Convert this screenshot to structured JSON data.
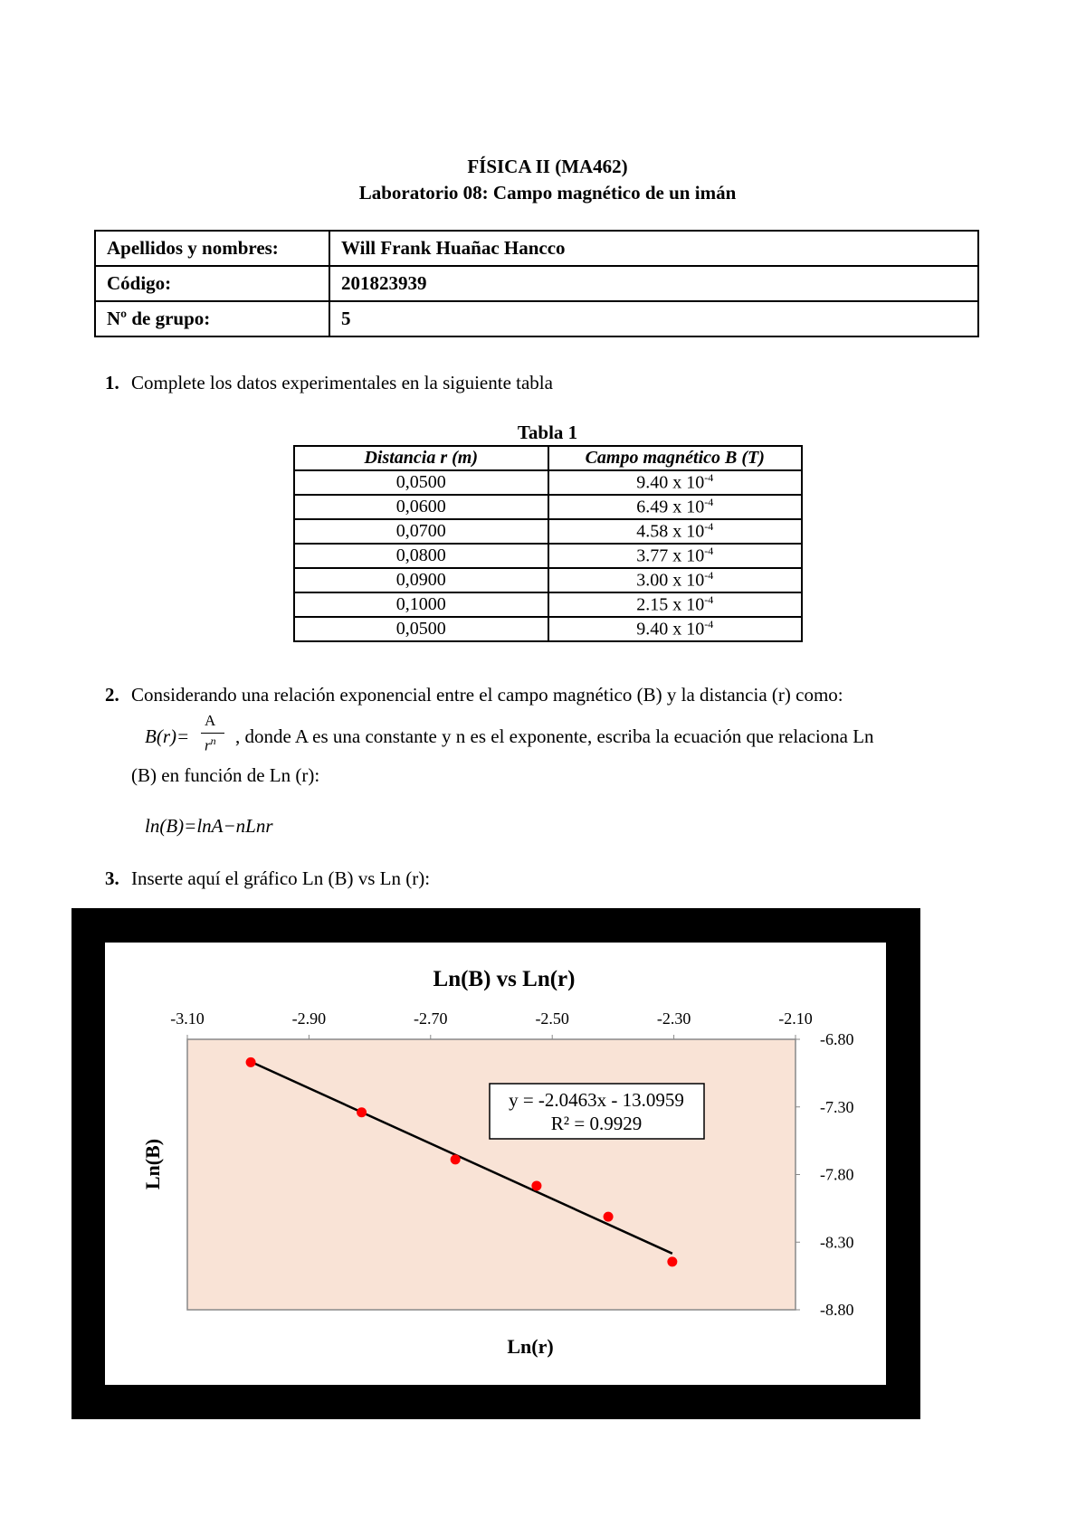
{
  "header": {
    "title": "FÍSICA II (MA462)",
    "subtitle": "Laboratorio 08: Campo magnético de un imán"
  },
  "info_table": {
    "rows": [
      [
        "Apellidos y nombres:",
        "Will Frank Huañac Hancco"
      ],
      [
        "Código:",
        "201823939"
      ],
      [
        "Nº de grupo:",
        "5"
      ]
    ]
  },
  "questions": [
    {
      "number": "1.",
      "text": "Complete los datos experimentales en la siguiente tabla"
    },
    {
      "number": "2.",
      "text": "Considerando una relación exponencial entre el campo magnético (B) y la distancia (r) como:",
      "formula": {
        "lhs": "B(r)=",
        "numerator": "A",
        "denominator": "r",
        "power": "n"
      },
      "continuation": ", donde A es una constante y n es el exponente, escriba la ecuación que relaciona Ln",
      "continuation2": "(B) en función de Ln (r):",
      "equation": "ln(B)=lnA−nLnr"
    },
    {
      "number": "3.",
      "text": "Inserte aquí el gráfico Ln (B) vs Ln (r):"
    }
  ],
  "table": {
    "caption": "Tabla 1",
    "headers": [
      "Distancia r (m)",
      "Campo magnético B (T)"
    ],
    "rows": [
      [
        "0,0500",
        "9.40 x 10",
        "-4"
      ],
      [
        "0,0600",
        "6.49 x 10",
        "-4"
      ],
      [
        "0,0700",
        "4.58 x 10",
        "-4"
      ],
      [
        "0,0800",
        "3.77 x 10",
        "-4"
      ],
      [
        "0,0900",
        "3.00 x 10",
        "-4"
      ],
      [
        "0,1000",
        "2.15 x 10",
        "-4"
      ],
      [
        "0,0500",
        "9.40 x 10",
        "-4"
      ]
    ]
  },
  "chart_data": {
    "type": "scatter",
    "title": "Ln(B) vs Ln(r)",
    "x_label": "Ln(r)",
    "y_label": "Ln(B)",
    "x": [
      -2.9957,
      -2.8134,
      -2.6593,
      -2.5257,
      -2.4079,
      -2.3026
    ],
    "series": [
      {
        "color": "#ff0000",
        "values": [
          -6.9696,
          -7.3401,
          -7.6886,
          -7.8832,
          -8.1117,
          -8.4449
        ]
      }
    ],
    "xlim": [
      -3.1,
      -2.1
    ],
    "ylim": [
      -8.8,
      -6.8
    ],
    "xticks": [
      {
        "value": -3.1,
        "label": "-3.10"
      },
      {
        "value": -2.9,
        "label": "-2.90"
      },
      {
        "value": -2.7,
        "label": "-2.70"
      },
      {
        "value": -2.5,
        "label": "-2.50"
      },
      {
        "value": -2.3,
        "label": "-2.30"
      },
      {
        "value": -2.1,
        "label": "-2.10"
      }
    ],
    "yticks": [
      {
        "value": -6.8,
        "label": "-6.80"
      },
      {
        "value": -7.3,
        "label": "-7.30"
      },
      {
        "value": -7.8,
        "label": "-7.80"
      },
      {
        "value": -8.3,
        "label": "-8.30"
      },
      {
        "value": -8.8,
        "label": "-8.80"
      }
    ],
    "plot_background": "#f9e3d6",
    "trendline": {
      "slope": -2.0463,
      "intercept": -13.0959,
      "color": "#000000",
      "equation_label": "y = -2.0463x - 13.0959",
      "r2_label": "R² = 0.9929"
    }
  }
}
